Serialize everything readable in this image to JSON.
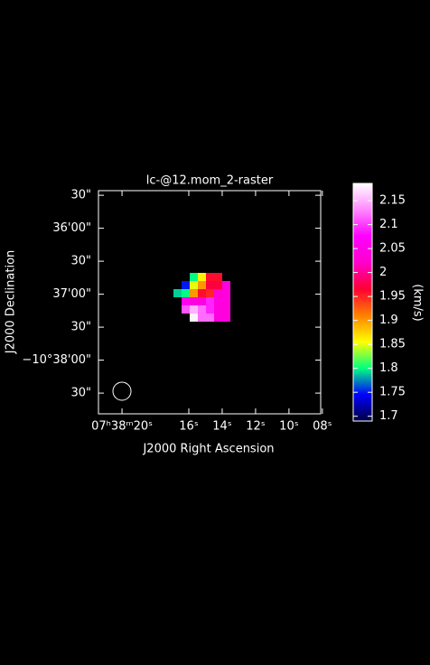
{
  "chart_data": {
    "type": "raster",
    "title": "lc-@12.mom_2-raster",
    "xlabel": "J2000 Right Ascension",
    "ylabel": "J2000 Declination",
    "colorbar_label": "(km/s)",
    "xlim": [
      27501.41,
      27488.1
    ],
    "xticks": [
      {
        "value": 27500,
        "label": "07ʰ38ᵐ20ˢ"
      },
      {
        "value": 27496,
        "label": "16ˢ"
      },
      {
        "value": 27494,
        "label": "14ˢ"
      },
      {
        "value": 27492,
        "label": "12ˢ"
      },
      {
        "value": 27490,
        "label": "10ˢ"
      },
      {
        "value": 27488,
        "label": "08ˢ"
      }
    ],
    "ylim": [
      -10.6469,
      -10.5905
    ],
    "yticks": [
      {
        "value": -10.591667,
        "label": "30\""
      },
      {
        "value": -10.6,
        "label": "36'00\""
      },
      {
        "value": -10.608333,
        "label": "30\""
      },
      {
        "value": -10.616667,
        "label": "37'00\""
      },
      {
        "value": -10.625,
        "label": "30\""
      },
      {
        "value": -10.633333,
        "label": "−10°38'00\""
      },
      {
        "value": -10.641667,
        "label": "30\""
      }
    ],
    "clim": [
      1.69,
      2.186
    ],
    "cticks": [
      1.7,
      1.75,
      1.8,
      1.85,
      1.9,
      1.95,
      2,
      2.05,
      2.1,
      2.15
    ],
    "colormap": [
      "#000040",
      "#0000ff",
      "#00ff80",
      "#ffff00",
      "#ff8000",
      "#ff0033",
      "#ff00cc",
      "#ff00ff",
      "#ff88ff",
      "#ffffff"
    ],
    "raster": [
      [
        null,
        null,
        1.8,
        1.86,
        1.96,
        1.96,
        null
      ],
      [
        null,
        1.75,
        1.85,
        1.9,
        1.97,
        1.97,
        2.04
      ],
      [
        1.79,
        1.8,
        1.9,
        1.96,
        1.95,
        2.03,
        2.04
      ],
      [
        null,
        2.06,
        2.04,
        2.04,
        2.09,
        2.04,
        2.04
      ],
      [
        null,
        2.11,
        2.15,
        2.12,
        2.09,
        2.04,
        2.04
      ],
      [
        null,
        null,
        2.18,
        2.12,
        2.12,
        2.04,
        2.04
      ]
    ]
  }
}
